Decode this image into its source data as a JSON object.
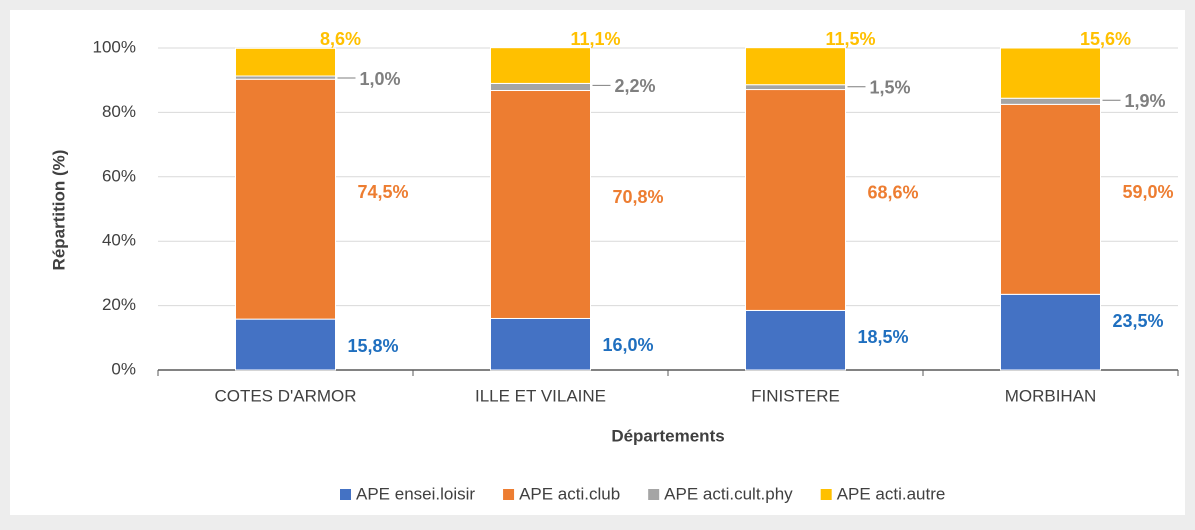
{
  "chart_data": {
    "type": "stacked_bar",
    "x_label": "Départements",
    "y_label": "Répartition (%)",
    "categories": [
      "COTES D'ARMOR",
      "ILLE ET VILAINE",
      "FINISTERE",
      "MORBIHAN"
    ],
    "ylim": [
      0,
      100
    ],
    "yticks": [
      {
        "value": 0,
        "label": "0%"
      },
      {
        "value": 20,
        "label": "20%"
      },
      {
        "value": 40,
        "label": "40%"
      },
      {
        "value": 60,
        "label": "60%"
      },
      {
        "value": 80,
        "label": "80%"
      },
      {
        "value": 100,
        "label": "100%"
      }
    ],
    "grid": true,
    "legend": "bottom",
    "series": [
      {
        "name": "APE ensei.loisir",
        "color": "#4472c4",
        "label_color": "#1f6fbf",
        "values": [
          15.8,
          16.0,
          18.5,
          23.5
        ],
        "value_labels": [
          "15,8%",
          "16,0%",
          "18,5%",
          "23,5%"
        ]
      },
      {
        "name": "APE acti.club",
        "color": "#ed7d31",
        "label_color": "#ed7d31",
        "values": [
          74.5,
          70.8,
          68.6,
          59.0
        ],
        "value_labels": [
          "74,5%",
          "70,8%",
          "68,6%",
          "59,0%"
        ]
      },
      {
        "name": "APE acti.cult.phy",
        "color": "#a5a5a5",
        "label_color": "#7f7f7f",
        "values": [
          1.0,
          2.2,
          1.5,
          1.9
        ],
        "value_labels": [
          "1,0%",
          "2,2%",
          "1,5%",
          "1,9%"
        ]
      },
      {
        "name": "APE acti.autre",
        "color": "#ffc000",
        "label_color": "#ffc000",
        "values": [
          8.6,
          11.1,
          11.5,
          15.6
        ],
        "value_labels": [
          "8,6%",
          "11,1%",
          "11,5%",
          "15,6%"
        ]
      }
    ]
  }
}
